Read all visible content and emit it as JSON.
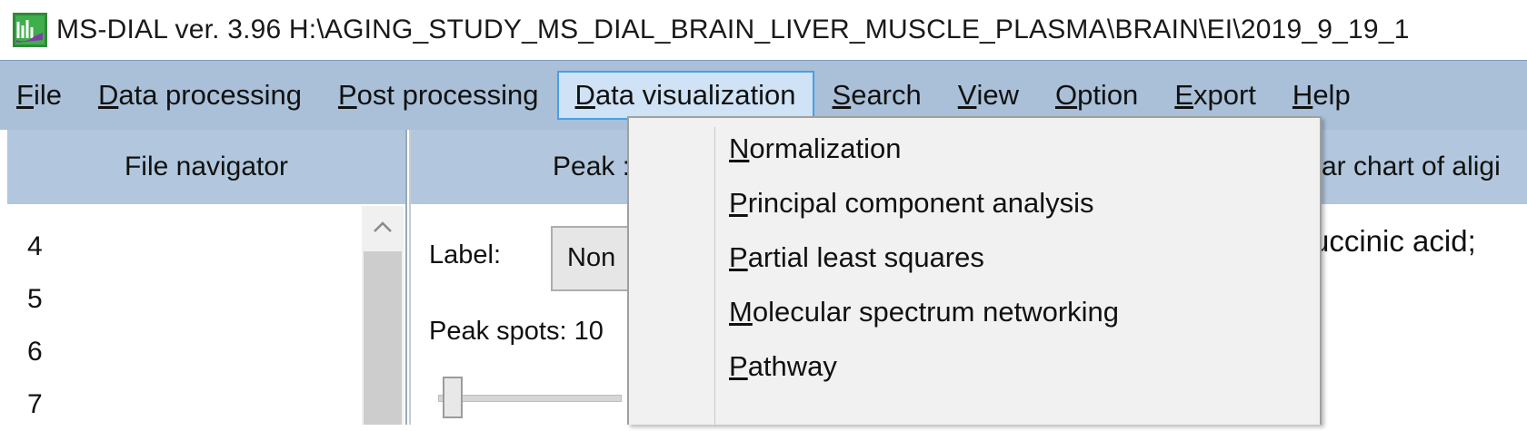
{
  "window": {
    "title": "MS-DIAL ver. 3.96 H:\\AGING_STUDY_MS_DIAL_BRAIN_LIVER_MUSCLE_PLASMA\\BRAIN\\EI\\2019_9_19_1"
  },
  "menubar": {
    "items": [
      {
        "mnemonic": "F",
        "rest": "ile"
      },
      {
        "mnemonic": "D",
        "rest": "ata processing"
      },
      {
        "mnemonic": "P",
        "rest": "ost processing"
      },
      {
        "mnemonic": "D",
        "rest": "ata visualization"
      },
      {
        "mnemonic": "S",
        "rest": "earch"
      },
      {
        "mnemonic": "V",
        "rest": "iew"
      },
      {
        "mnemonic": "O",
        "rest": "ption"
      },
      {
        "mnemonic": "E",
        "rest": "xport"
      },
      {
        "mnemonic": "H",
        "rest": "elp"
      }
    ]
  },
  "left_panel": {
    "header": "File navigator",
    "files": [
      "4",
      "5",
      "6",
      "7"
    ]
  },
  "center_panel": {
    "tab_label": "Peak :",
    "right_tab_label": "ar chart of aligi",
    "label_caption": "Label:",
    "label_value": "Non",
    "peak_spots": "Peak spots: 10",
    "compound_text": "uccinic acid;"
  },
  "dropdown": {
    "items": [
      {
        "mnemonic": "N",
        "rest": "ormalization"
      },
      {
        "mnemonic": "P",
        "rest": "rincipal component analysis"
      },
      {
        "mnemonic": "P",
        "rest": "artial least squares"
      },
      {
        "mnemonic": "M",
        "rest": "olecular spectrum networking"
      },
      {
        "mnemonic": "P",
        "rest": "athway"
      }
    ]
  },
  "colors": {
    "menubar_bg": "#a9c0d8",
    "header_bg": "#b2c7dd",
    "active_menu_bg": "#cfe2f6",
    "active_menu_border": "#45a0e6",
    "dropdown_bg": "#f1f1f1"
  },
  "icons": {
    "app": "ms-dial-app-icon",
    "scroll_up": "chevron-up-icon"
  }
}
